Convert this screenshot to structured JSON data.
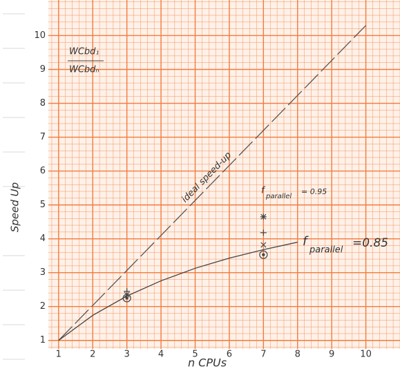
{
  "chart_data": {
    "type": "line",
    "xlabel": "n CPUs",
    "ylabel": "Speed Up",
    "xlim": [
      0.7,
      11
    ],
    "ylim": [
      0.75,
      11.05
    ],
    "xticks": [
      1,
      2,
      3,
      4,
      5,
      6,
      7,
      8,
      9,
      10
    ],
    "yticks": [
      1,
      2,
      3,
      4,
      5,
      6,
      7,
      8,
      9,
      10
    ],
    "grid": true,
    "series": [
      {
        "name": "ideal speed-up",
        "color": "#555555",
        "dash": true,
        "x": [
          1,
          10
        ],
        "values": [
          1,
          10.3
        ]
      },
      {
        "color": "#444444",
        "dash": false,
        "x": [
          1,
          2,
          3,
          4,
          5,
          6,
          7,
          8
        ],
        "values": [
          1,
          1.74,
          2.31,
          2.76,
          3.13,
          3.43,
          3.68,
          3.9
        ]
      }
    ],
    "points": [
      {
        "marker": "plus",
        "color": "#444444",
        "x": [
          3,
          7
        ],
        "values": [
          2.45,
          4.18
        ]
      },
      {
        "marker": "cross",
        "color": "#444444",
        "x": [
          3,
          7
        ],
        "values": [
          2.35,
          3.82
        ]
      },
      {
        "marker": "star",
        "color": "#444444",
        "x": [
          7
        ],
        "values": [
          4.65
        ]
      },
      {
        "marker": "circled-dot",
        "color": "#444444",
        "x": [
          3,
          7
        ],
        "values": [
          2.25,
          3.53
        ]
      }
    ],
    "formula": {
      "numerator": "WCbd₁",
      "denominator": "WCbdₙ"
    },
    "label_085": {
      "symbol": "f",
      "subscript": "parallel",
      "text": "=0.85"
    },
    "label_095": {
      "symbol": "f",
      "subscript": "parallel",
      "text": "= 0.95"
    }
  }
}
